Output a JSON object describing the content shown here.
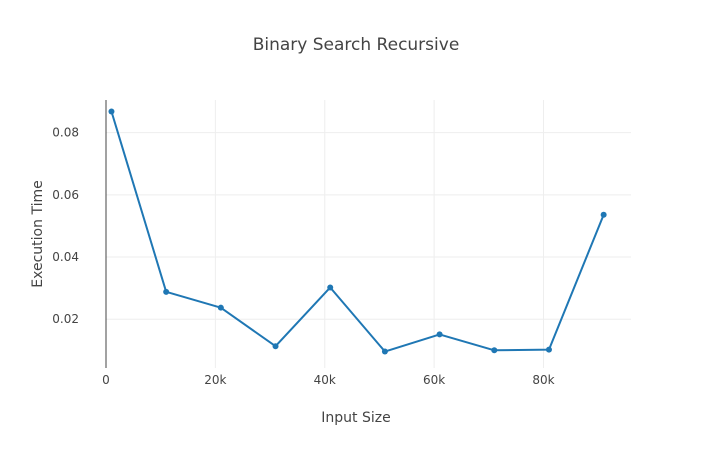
{
  "chart_data": {
    "type": "line",
    "title": "Binary Search Recursive",
    "xlabel": "Input Size",
    "ylabel": "Execution Time",
    "xlim": [
      0,
      96000
    ],
    "ylim": [
      0.0043,
      0.0905
    ],
    "x_ticks": [
      0,
      20000,
      40000,
      60000,
      80000
    ],
    "x_tick_labels": [
      "0",
      "20k",
      "40k",
      "60k",
      "80k"
    ],
    "y_ticks": [
      0.02,
      0.04,
      0.06,
      0.08
    ],
    "y_tick_labels": [
      "0.02",
      "0.04",
      "0.06",
      "0.08"
    ],
    "grid": true,
    "legend": "none",
    "series": [
      {
        "color": "#1f77b4",
        "x": [
          1000,
          11000,
          21000,
          31000,
          41000,
          51000,
          61000,
          71000,
          81000,
          91000
        ],
        "y": [
          0.0868,
          0.0288,
          0.0237,
          0.0113,
          0.0302,
          0.0096,
          0.0151,
          0.01,
          0.0102,
          0.0536
        ]
      }
    ]
  }
}
